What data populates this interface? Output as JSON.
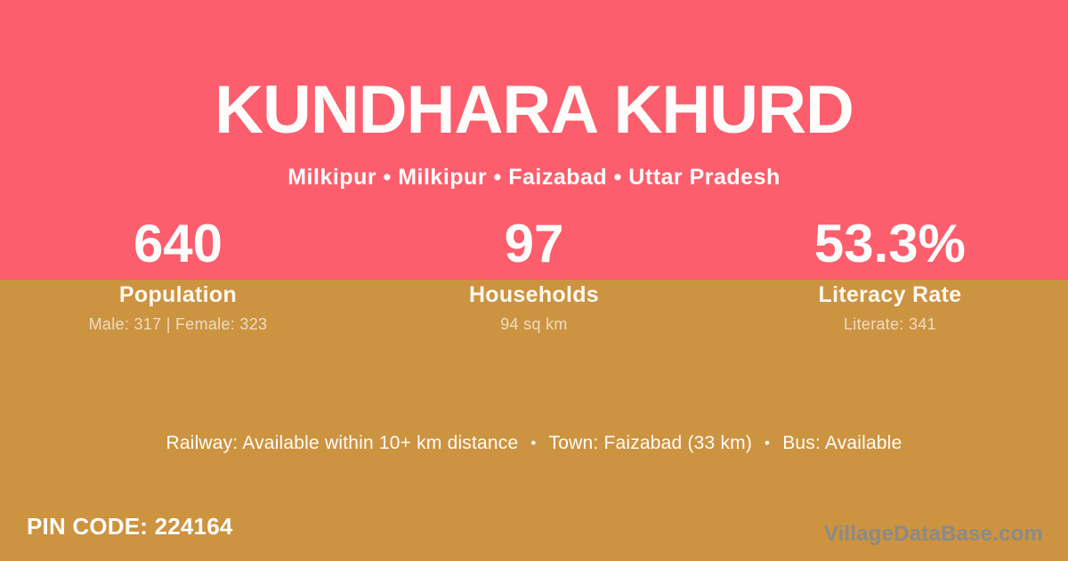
{
  "colors": {
    "header_pink": "#FC5E6D",
    "body_gold": "#CC9340",
    "text_white": "#FFFDFB",
    "detail_cream": "rgba(255,255,255,0.68)",
    "watermark_gray": "#8A8A8A"
  },
  "header": {
    "title": "KUNDHARA KHURD",
    "location": "Milkipur • Milkipur • Faizabad • Uttar Pradesh"
  },
  "stats": [
    {
      "value": "640",
      "label": "Population",
      "detail": "Male: 317 | Female: 323"
    },
    {
      "value": "97",
      "label": "Households",
      "detail": "94 sq km"
    },
    {
      "value": "53.3%",
      "label": "Literacy Rate",
      "detail": "Literate: 341"
    }
  ],
  "transit": {
    "sep": "•",
    "items": [
      "Railway: Available within 10+ km distance",
      "Town: Faizabad (33 km)",
      "Bus: Available"
    ]
  },
  "footer": {
    "pin": "PIN CODE: 224164",
    "watermark": "VillageDataBase.com"
  }
}
